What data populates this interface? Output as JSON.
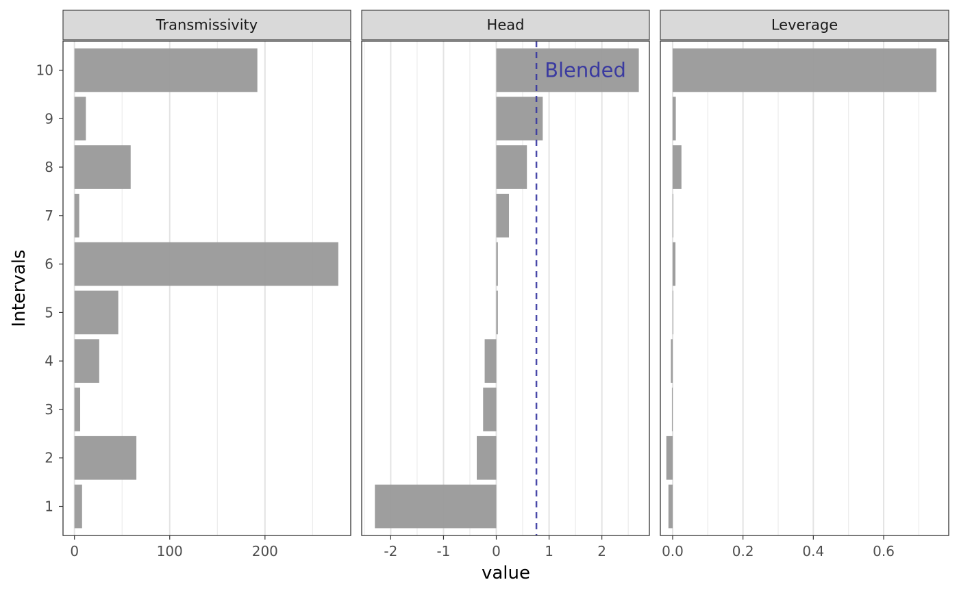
{
  "chart_data": {
    "type": "bar",
    "orientation": "horizontal",
    "facets": [
      "Transmissivity",
      "Head",
      "Leverage"
    ],
    "categories": [
      "1",
      "2",
      "3",
      "4",
      "5",
      "6",
      "7",
      "8",
      "9",
      "10"
    ],
    "series": [
      {
        "facet": "Transmissivity",
        "values": [
          8,
          65,
          6,
          26,
          46,
          277,
          5,
          59,
          12,
          192
        ],
        "xlim": [
          -12,
          290
        ],
        "xticks": [
          0,
          100,
          200
        ]
      },
      {
        "facet": "Head",
        "values": [
          -2.3,
          -0.37,
          -0.25,
          -0.22,
          0.03,
          0.03,
          0.24,
          0.58,
          0.88,
          2.7
        ],
        "xlim": [
          -2.55,
          2.9
        ],
        "xticks": [
          -2,
          -1,
          0,
          1,
          2
        ],
        "reference_line": {
          "value": 0.76,
          "label": "Blended",
          "color": "#3535a0",
          "style": "dashed"
        }
      },
      {
        "facet": "Leverage",
        "values": [
          -0.012,
          -0.018,
          -0.002,
          -0.005,
          0.002,
          0.008,
          0.002,
          0.025,
          0.009,
          0.75
        ],
        "xlim": [
          -0.035,
          0.785
        ],
        "xticks": [
          0.0,
          0.2,
          0.4,
          0.6
        ],
        "xtick_labels": [
          "0.0",
          "0.2",
          "0.4",
          "0.6"
        ]
      }
    ],
    "xlabel": "value",
    "ylabel": "Intervals",
    "grid": true,
    "bar_color": "#999999"
  }
}
